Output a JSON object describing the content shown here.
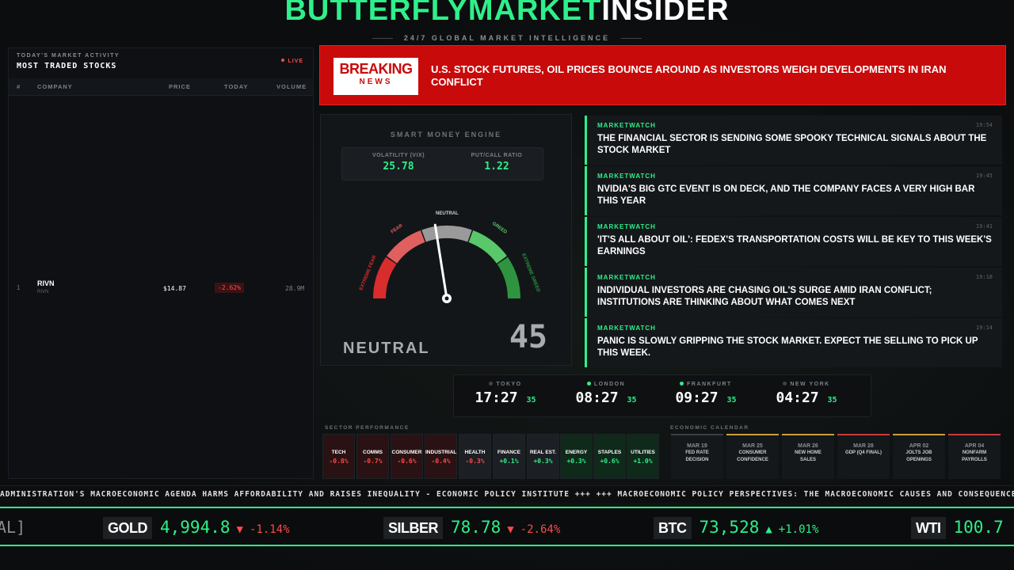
{
  "header": {
    "brand_green": "BUTTERFLYMARKET",
    "brand_white": "INSIDER",
    "tagline": "24/7 GLOBAL MARKET INTELLIGENCE"
  },
  "stocks": {
    "caption": "TODAY'S MARKET ACTIVITY",
    "title": "MOST TRADED STOCKS",
    "live": "LIVE",
    "columns": [
      "#",
      "COMPANY",
      "PRICE",
      "TODAY",
      "VOLUME"
    ],
    "rows": [
      {
        "rank": "1",
        "name": "RIVN",
        "ticker": "RIVN",
        "price": "$14.87",
        "today": "-2.62%",
        "volume": "28.9M"
      }
    ]
  },
  "breaking": {
    "label1": "BREAKING",
    "label2": "NEWS",
    "headline": "U.S. STOCK FUTURES, OIL PRICES BOUNCE AROUND AS INVESTORS WEIGH DEVELOPMENTS IN IRAN CONFLICT"
  },
  "gauge": {
    "title": "SMART MONEY ENGINE",
    "vix_label": "VOLATILITY (VIX)",
    "vix_value": "25.78",
    "pc_label": "PUT/CALL RATIO",
    "pc_value": "1.22",
    "zones": [
      "EXTREME FEAR",
      "FEAR",
      "NEUTRAL",
      "GREED",
      "EXTREME GREED"
    ],
    "sentiment": "NEUTRAL",
    "score": "45",
    "score_value": 45
  },
  "news": [
    {
      "source": "MARKETWATCH",
      "time": "19:54",
      "headline": "THE FINANCIAL SECTOR IS SENDING SOME SPOOKY TECHNICAL SIGNALS ABOUT THE STOCK MARKET"
    },
    {
      "source": "MARKETWATCH",
      "time": "19:45",
      "headline": "NVIDIA'S BIG GTC EVENT IS ON DECK, AND THE COMPANY FACES A VERY HIGH BAR THIS YEAR"
    },
    {
      "source": "MARKETWATCH",
      "time": "19:41",
      "headline": "'IT'S ALL ABOUT OIL': FEDEX'S TRANSPORTATION COSTS WILL BE KEY TO THIS WEEK'S EARNINGS"
    },
    {
      "source": "MARKETWATCH",
      "time": "19:18",
      "headline": "INDIVIDUAL INVESTORS ARE CHASING OIL'S SURGE AMID IRAN CONFLICT; INSTITUTIONS ARE THINKING ABOUT WHAT COMES NEXT"
    },
    {
      "source": "MARKETWATCH",
      "time": "19:14",
      "headline": "PANIC IS SLOWLY GRIPPING THE STOCK MARKET. EXPECT THE SELLING TO PICK UP THIS WEEK."
    }
  ],
  "clocks": [
    {
      "city": "TOKYO",
      "time": "17:27",
      "sec": "35"
    },
    {
      "city": "LONDON",
      "time": "08:27",
      "sec": "35"
    },
    {
      "city": "FRANKFURT",
      "time": "09:27",
      "sec": "35"
    },
    {
      "city": "NEW YORK",
      "time": "04:27",
      "sec": "35"
    }
  ],
  "sectors": {
    "caption": "SECTOR PERFORMANCE",
    "items": [
      {
        "name": "TECH",
        "change": "-0.8%"
      },
      {
        "name": "COMMS",
        "change": "-0.7%"
      },
      {
        "name": "CONSUMER",
        "change": "-0.6%"
      },
      {
        "name": "INDUSTRIAL",
        "change": "-0.4%"
      },
      {
        "name": "HEALTH",
        "change": "-0.3%"
      },
      {
        "name": "FINANCE",
        "change": "+0.1%"
      },
      {
        "name": "REAL EST.",
        "change": "+0.3%"
      },
      {
        "name": "ENERGY",
        "change": "+0.3%"
      },
      {
        "name": "STAPLES",
        "change": "+0.6%"
      },
      {
        "name": "UTILITIES",
        "change": "+1.0%"
      }
    ]
  },
  "calendar": {
    "caption": "ECONOMIC CALENDAR",
    "items": [
      {
        "date": "MAR 19",
        "event1": "FED RATE",
        "event2": "DECISION"
      },
      {
        "date": "MAR 25",
        "event1": "CONSUMER",
        "event2": "CONFIDENCE"
      },
      {
        "date": "MAR 26",
        "event1": "NEW HOME",
        "event2": "SALES"
      },
      {
        "date": "MAR 28",
        "event1": "GDP (Q4 FINAL)",
        "event2": ""
      },
      {
        "date": "APR 02",
        "event1": "JOLTS JOB",
        "event2": "OPENINGS"
      },
      {
        "date": "APR 04",
        "event1": "NONFARM",
        "event2": "PAYROLLS"
      }
    ]
  },
  "crawl": "ADMINISTRATION'S MACROECONOMIC AGENDA HARMS AFFORDABILITY AND RAISES INEQUALITY - ECONOMIC POLICY INSTITUTE +++ +++ MACROECONOMIC POLICY PERSPECTIVES: THE MACROECONOMIC CAUSES AND CONSEQUENCES C",
  "ticker": {
    "lead": "AL]",
    "items": [
      {
        "symbol": "GOLD",
        "price": "4,994.8",
        "arrow": "▼",
        "change": "-1.14%"
      },
      {
        "symbol": "SILBER",
        "price": "78.78",
        "arrow": "▼",
        "change": "-2.64%"
      },
      {
        "symbol": "BTC",
        "price": "73,528",
        "arrow": "▲",
        "change": "+1.01%"
      },
      {
        "symbol": "WTI",
        "price": "100.7"
      }
    ]
  },
  "colors": {
    "accent": "#2ef08a",
    "alert": "#c80a0a",
    "negative": "#ff4a4a"
  }
}
